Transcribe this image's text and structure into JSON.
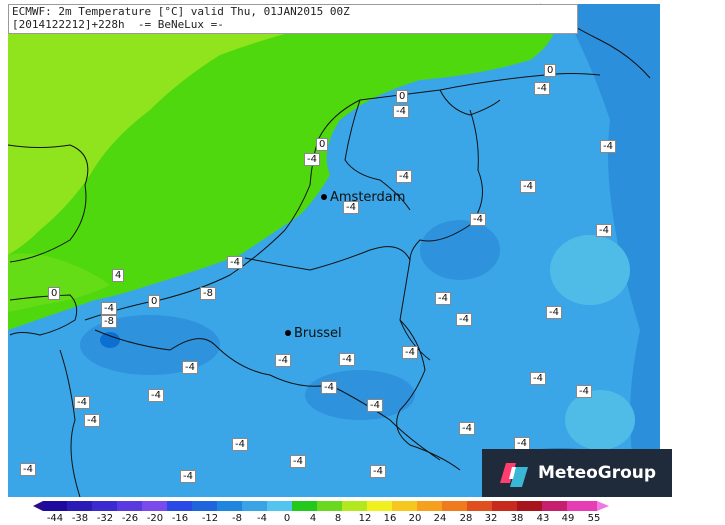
{
  "header": {
    "line1": "ECMWF: 2m Temperature [°C] valid Thu, 01JAN2015 00Z",
    "line2": "[2014122212]+228h  -= BeNeLux =-"
  },
  "cities": [
    {
      "name": "Amsterdam"
    },
    {
      "name": "Brussel"
    }
  ],
  "value_labels": [
    "0",
    "-4",
    "0",
    "-4",
    "0",
    "-4",
    "-4",
    "-4",
    "-4",
    "-4",
    "-4",
    "-4",
    "4",
    "-4",
    "-8",
    "0",
    "0",
    "-4",
    "-8",
    "-4",
    "-4",
    "-4",
    "-4",
    "-4",
    "-4",
    "-4",
    "-4",
    "-4",
    "-4",
    "-4",
    "-4",
    "-4",
    "-4",
    "-4",
    "-4",
    "-4",
    "-4",
    "-4",
    "-4",
    "-4"
  ],
  "legend": {
    "ticks": [
      "-44",
      "-38",
      "-32",
      "-26",
      "-20",
      "-16",
      "-12",
      "-8",
      "-4",
      "0",
      "4",
      "8",
      "12",
      "16",
      "20",
      "24",
      "28",
      "32",
      "38",
      "43",
      "49",
      "55"
    ]
  },
  "logo": {
    "text": "MeteoGroup"
  },
  "colors": {
    "land_green": "#8fe41e",
    "coast_green": "#4fd80e",
    "sea_blue": "#38a4e6",
    "cold_blue": "#2b8fdc",
    "light_blue": "#4fbce8",
    "deep_blue": "#0d6fd0",
    "logo_bg": "#1f2a3b"
  }
}
